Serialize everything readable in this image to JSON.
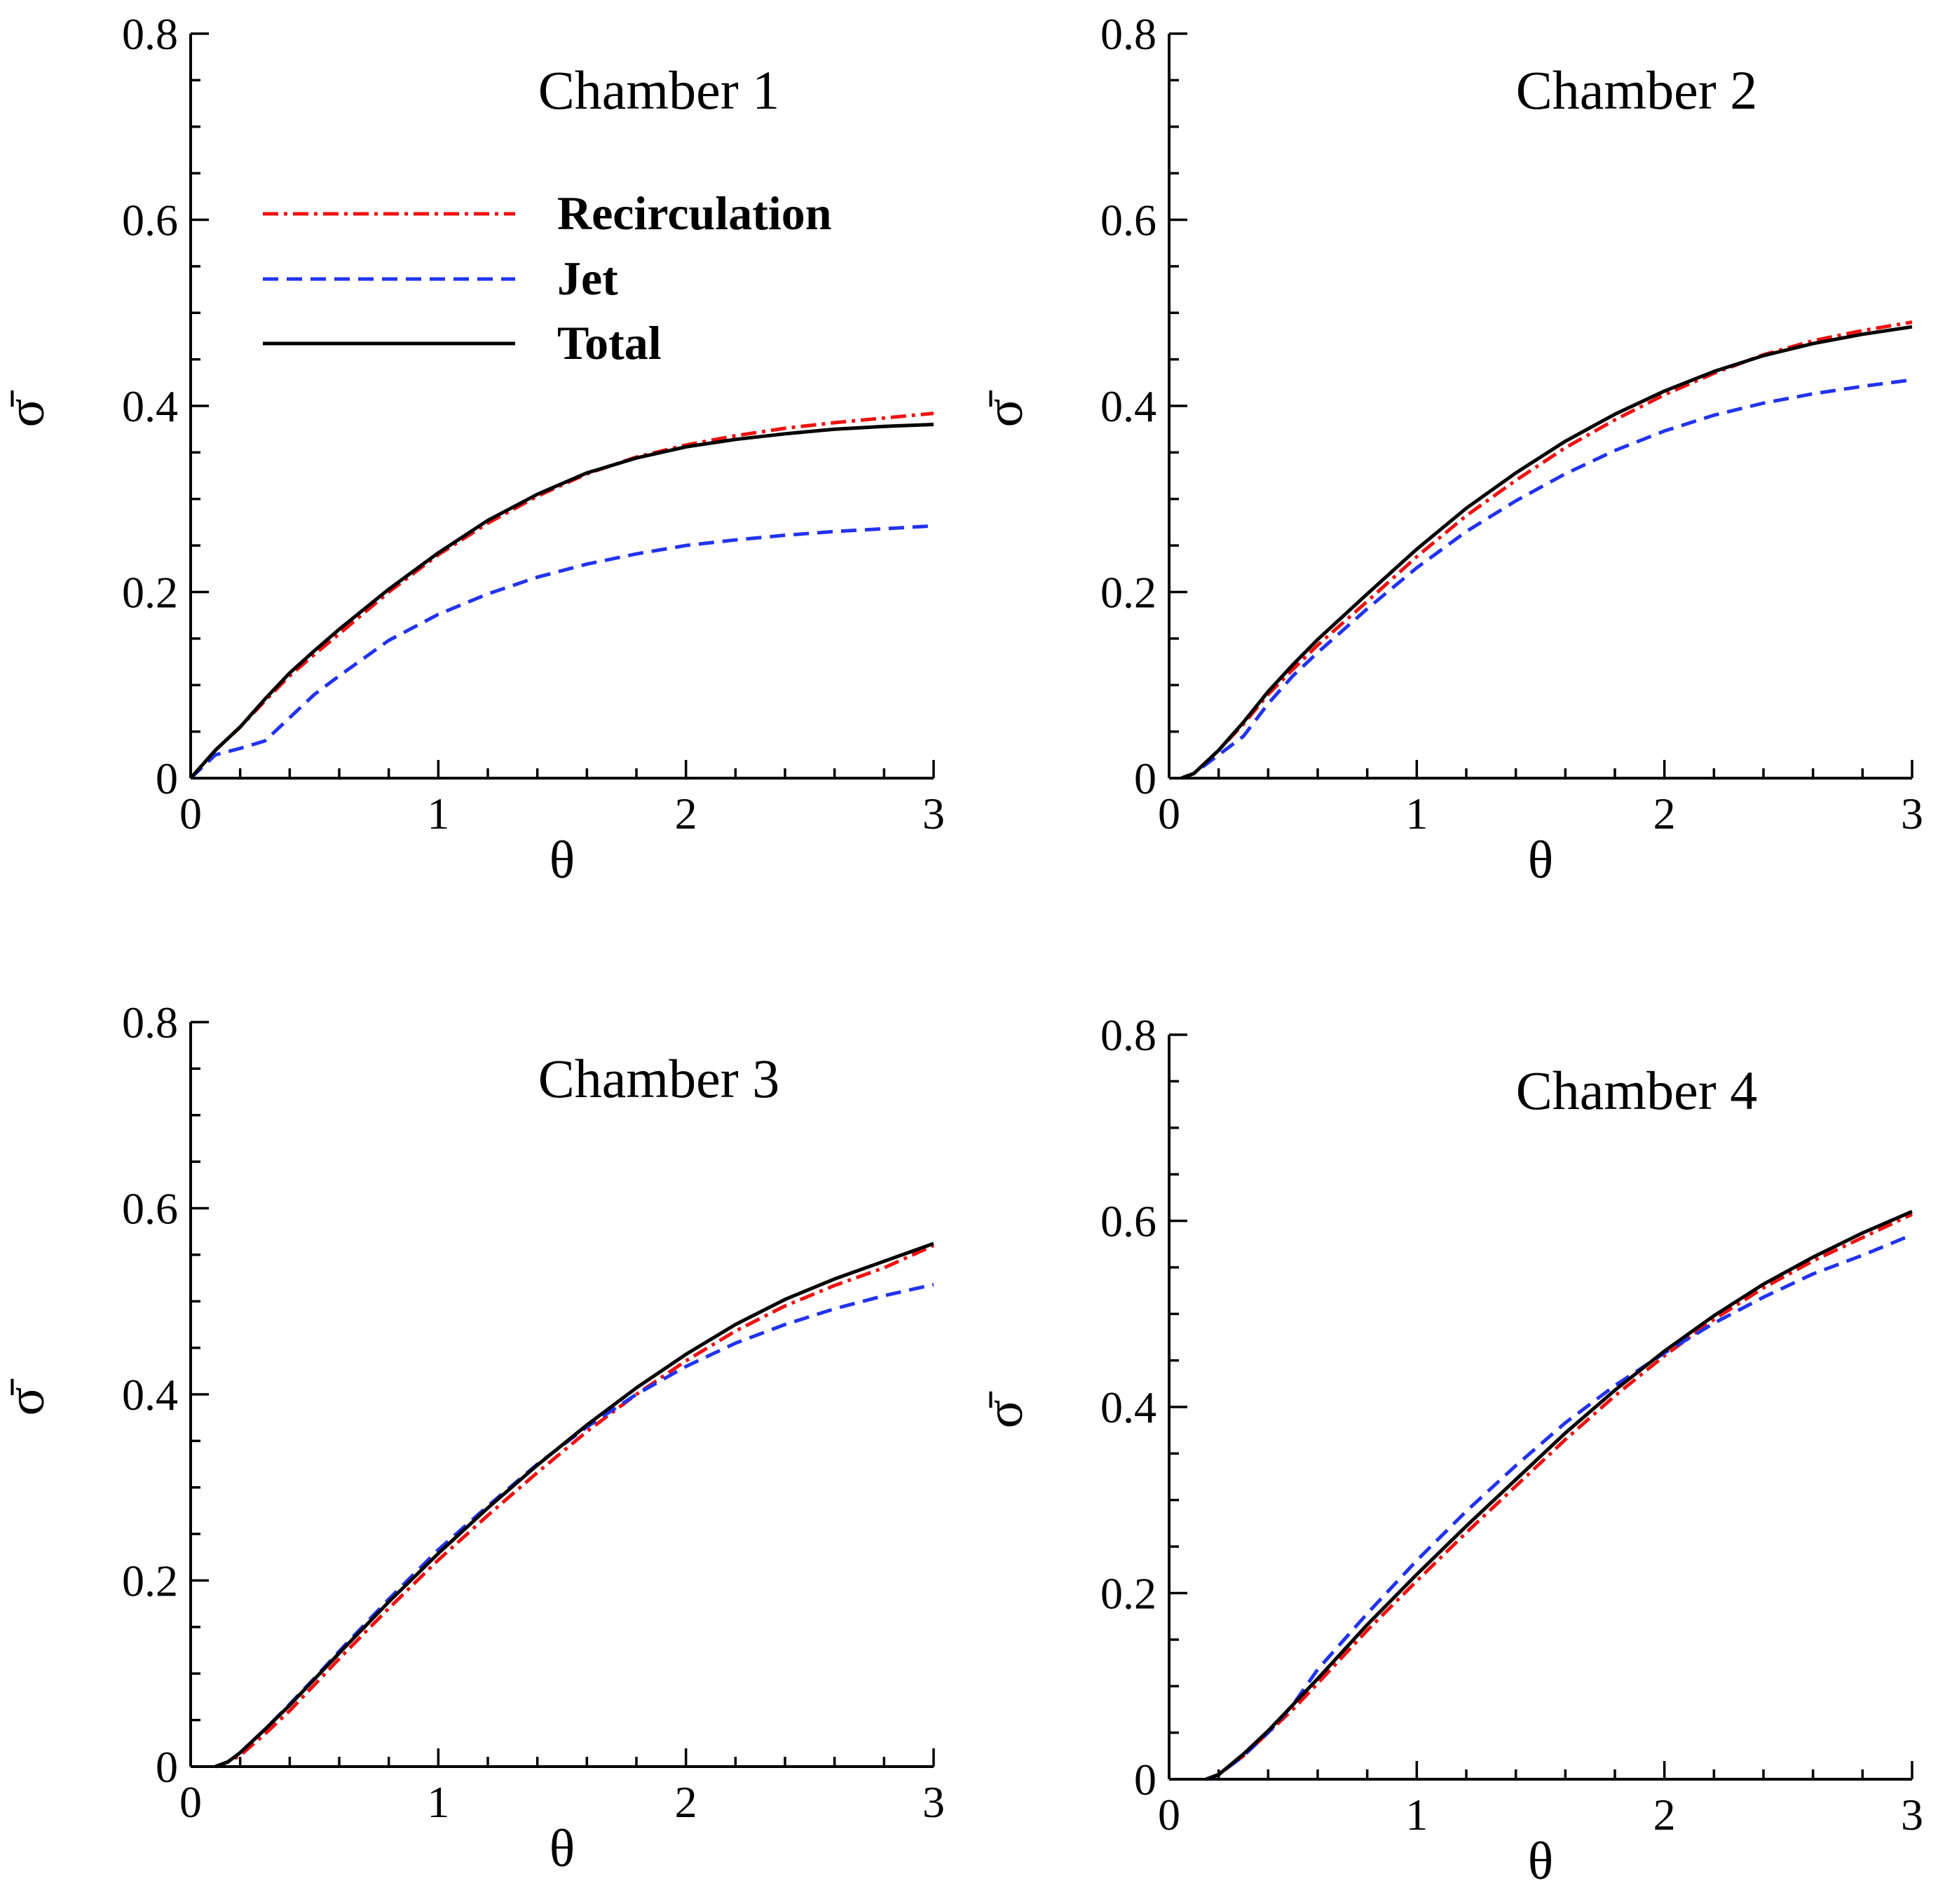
{
  "figure": {
    "legend_location": "upper-left of panel 1"
  },
  "series_styles": [
    {
      "name": "Recirculation",
      "color": "#ee1111",
      "dash": "dash-dot"
    },
    {
      "name": "Jet",
      "color": "#2233ee",
      "dash": "dashed"
    },
    {
      "name": "Total",
      "color": "#000000",
      "dash": "solid"
    }
  ],
  "chart_data": [
    {
      "type": "line",
      "title": "Chamber 1",
      "xlabel": "θ",
      "ylabel": "σ̄",
      "xlim": [
        0,
        3
      ],
      "ylim": [
        0,
        0.8
      ],
      "xticks": [
        "0",
        "1",
        "2",
        "3"
      ],
      "yticks": [
        "0",
        "0.2",
        "0.4",
        "0.6",
        "0.8"
      ],
      "legend": [
        "Recirculation",
        "Jet",
        "Total"
      ],
      "x": [
        0,
        0.1,
        0.2,
        0.3,
        0.4,
        0.5,
        0.6,
        0.8,
        1.0,
        1.2,
        1.4,
        1.6,
        1.8,
        2.0,
        2.2,
        2.4,
        2.6,
        2.8,
        3.0
      ],
      "series": [
        {
          "name": "Recirculation",
          "values": [
            0,
            0.03,
            0.055,
            0.083,
            0.11,
            0.133,
            0.155,
            0.2,
            0.24,
            0.274,
            0.303,
            0.327,
            0.345,
            0.358,
            0.368,
            0.376,
            0.382,
            0.387,
            0.392
          ]
        },
        {
          "name": "Jet",
          "values": [
            0,
            0.025,
            0.032,
            0.04,
            0.065,
            0.09,
            0.11,
            0.148,
            0.176,
            0.198,
            0.216,
            0.23,
            0.241,
            0.25,
            0.256,
            0.261,
            0.265,
            0.268,
            0.271
          ]
        },
        {
          "name": "Total",
          "values": [
            0,
            0.03,
            0.055,
            0.085,
            0.113,
            0.137,
            0.16,
            0.203,
            0.242,
            0.277,
            0.305,
            0.328,
            0.344,
            0.356,
            0.364,
            0.37,
            0.375,
            0.378,
            0.38
          ]
        }
      ]
    },
    {
      "type": "line",
      "title": "Chamber 2",
      "xlabel": "θ",
      "ylabel": "σ̄",
      "xlim": [
        0,
        3
      ],
      "ylim": [
        0,
        0.8
      ],
      "xticks": [
        "0",
        "1",
        "2",
        "3"
      ],
      "yticks": [
        "0",
        "0.2",
        "0.4",
        "0.6",
        "0.8"
      ],
      "x": [
        0.05,
        0.1,
        0.2,
        0.3,
        0.4,
        0.5,
        0.6,
        0.8,
        1.0,
        1.2,
        1.4,
        1.6,
        1.8,
        2.0,
        2.2,
        2.4,
        2.6,
        2.8,
        3.0
      ],
      "series": [
        {
          "name": "Recirculation",
          "values": [
            0,
            0.005,
            0.03,
            0.058,
            0.09,
            0.117,
            0.143,
            0.19,
            0.238,
            0.282,
            0.32,
            0.355,
            0.385,
            0.412,
            0.435,
            0.455,
            0.47,
            0.481,
            0.49
          ]
        },
        {
          "name": "Jet",
          "values": [
            0,
            0.005,
            0.025,
            0.045,
            0.08,
            0.11,
            0.135,
            0.182,
            0.226,
            0.265,
            0.298,
            0.327,
            0.352,
            0.373,
            0.39,
            0.403,
            0.413,
            0.421,
            0.428
          ]
        },
        {
          "name": "Total",
          "values": [
            0,
            0.005,
            0.03,
            0.06,
            0.093,
            0.122,
            0.149,
            0.198,
            0.246,
            0.29,
            0.328,
            0.362,
            0.391,
            0.416,
            0.437,
            0.454,
            0.467,
            0.477,
            0.485
          ]
        }
      ]
    },
    {
      "type": "line",
      "title": "Chamber 3",
      "xlabel": "θ",
      "ylabel": "σ̄",
      "xlim": [
        0,
        3
      ],
      "ylim": [
        0,
        0.8
      ],
      "xticks": [
        "0",
        "1",
        "2",
        "3"
      ],
      "yticks": [
        "0",
        "0.2",
        "0.4",
        "0.6",
        "0.8"
      ],
      "x": [
        0.1,
        0.15,
        0.2,
        0.3,
        0.4,
        0.5,
        0.6,
        0.8,
        1.0,
        1.2,
        1.4,
        1.6,
        1.8,
        2.0,
        2.2,
        2.4,
        2.6,
        2.8,
        3.0
      ],
      "series": [
        {
          "name": "Recirculation",
          "values": [
            0,
            0.005,
            0.012,
            0.035,
            0.06,
            0.088,
            0.116,
            0.17,
            0.222,
            0.27,
            0.316,
            0.36,
            0.4,
            0.436,
            0.468,
            0.495,
            0.517,
            0.536,
            0.56
          ]
        },
        {
          "name": "Jet",
          "values": [
            0,
            0.005,
            0.015,
            0.04,
            0.067,
            0.095,
            0.124,
            0.18,
            0.233,
            0.28,
            0.325,
            0.365,
            0.4,
            0.43,
            0.455,
            0.475,
            0.492,
            0.506,
            0.518
          ]
        },
        {
          "name": "Total",
          "values": [
            0,
            0.005,
            0.015,
            0.04,
            0.066,
            0.094,
            0.122,
            0.177,
            0.229,
            0.278,
            0.324,
            0.367,
            0.407,
            0.443,
            0.475,
            0.502,
            0.524,
            0.543,
            0.562
          ]
        }
      ]
    },
    {
      "type": "line",
      "title": "Chamber 4",
      "xlabel": "θ",
      "ylabel": "σ̄",
      "xlim": [
        0,
        3
      ],
      "ylim": [
        0,
        0.8
      ],
      "xticks": [
        "0",
        "1",
        "2",
        "3"
      ],
      "yticks": [
        "0",
        "0.2",
        "0.4",
        "0.6",
        "0.8"
      ],
      "x": [
        0.15,
        0.2,
        0.3,
        0.4,
        0.5,
        0.6,
        0.8,
        1.0,
        1.2,
        1.4,
        1.6,
        1.8,
        2.0,
        2.2,
        2.4,
        2.6,
        2.8,
        3.0
      ],
      "series": [
        {
          "name": "Recirculation",
          "values": [
            0,
            0.005,
            0.025,
            0.05,
            0.075,
            0.103,
            0.16,
            0.213,
            0.265,
            0.315,
            0.365,
            0.412,
            0.455,
            0.494,
            0.528,
            0.557,
            0.582,
            0.607
          ]
        },
        {
          "name": "Jet",
          "values": [
            0,
            0.005,
            0.025,
            0.05,
            0.08,
            0.118,
            0.178,
            0.235,
            0.288,
            0.337,
            0.383,
            0.423,
            0.458,
            0.49,
            0.518,
            0.543,
            0.563,
            0.585
          ]
        },
        {
          "name": "Total",
          "values": [
            0,
            0.005,
            0.027,
            0.052,
            0.08,
            0.108,
            0.166,
            0.22,
            0.272,
            0.322,
            0.372,
            0.418,
            0.46,
            0.498,
            0.532,
            0.561,
            0.587,
            0.61
          ]
        }
      ]
    }
  ]
}
